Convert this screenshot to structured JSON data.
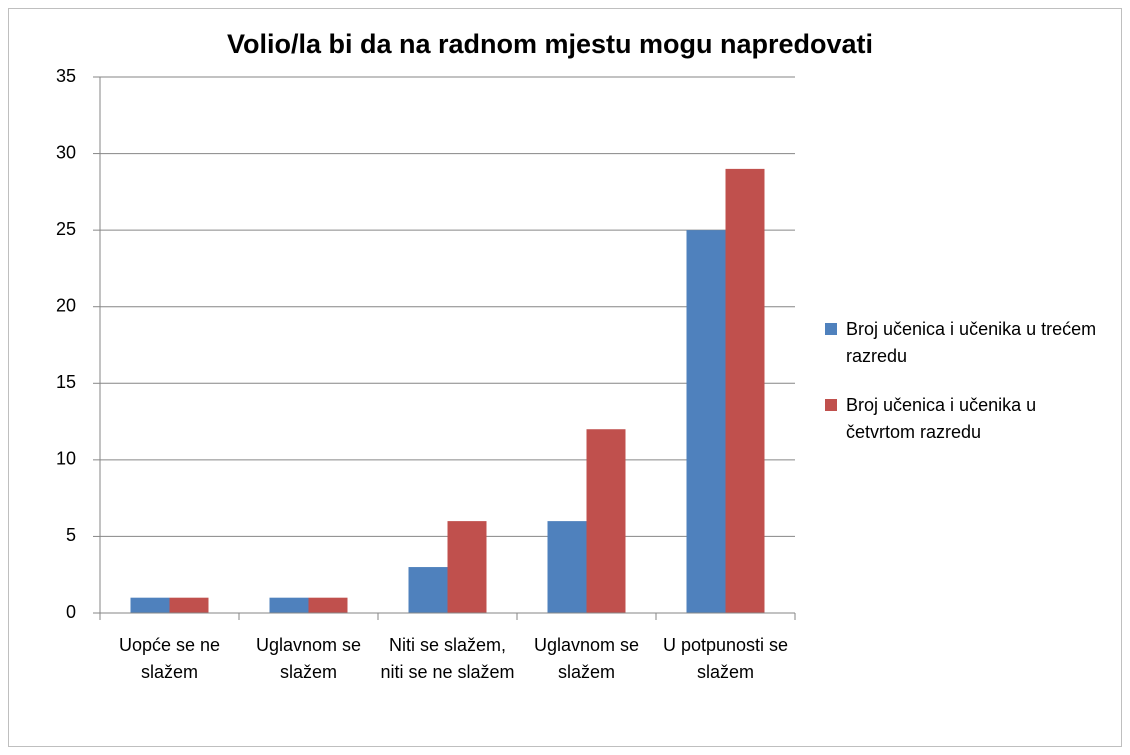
{
  "chart_data": {
    "type": "bar",
    "title": "Volio/la bi da na radnom mjestu mogu napredovati",
    "categories": [
      "Uopće se ne slažem",
      "Uglavnom se slažem",
      "Niti se slažem, niti se ne slažem",
      "Uglavnom se slažem",
      "U potpunosti se slažem"
    ],
    "series": [
      {
        "name": "Broj učenica i učenika u trećem razredu",
        "color": "#4f81bd",
        "values": [
          1,
          1,
          3,
          6,
          25
        ]
      },
      {
        "name": "Broj učenica i učenika u četvrtom razredu",
        "color": "#c0504d",
        "values": [
          1,
          1,
          6,
          12,
          29
        ]
      }
    ],
    "ylim": [
      0,
      35
    ],
    "yticks": [
      0,
      5,
      10,
      15,
      20,
      25,
      30,
      35
    ],
    "grid": true,
    "legend": "right"
  }
}
